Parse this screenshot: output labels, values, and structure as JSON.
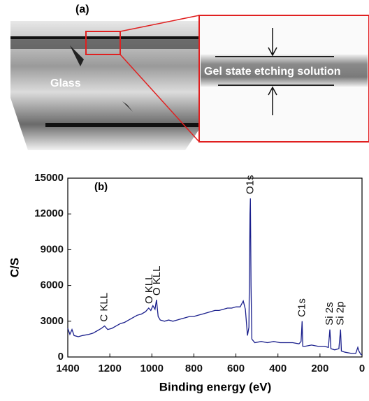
{
  "panel_a": {
    "label": "(a)",
    "glass_label": "Glass",
    "layer_label": "Gel state etching solution"
  },
  "chart_data": {
    "type": "line",
    "panel_label": "(b)",
    "x_label": "Binding energy (eV)",
    "y_label": "C/S",
    "color": "#1a1f8c",
    "xlim": [
      1400,
      0
    ],
    "xticks": [
      1400,
      1200,
      1000,
      800,
      600,
      400,
      200,
      0
    ],
    "ylim": [
      0,
      15000
    ],
    "yticks": [
      0,
      3000,
      6000,
      9000,
      12000,
      15000
    ],
    "x": [
      1400,
      1390,
      1380,
      1370,
      1350,
      1330,
      1300,
      1280,
      1260,
      1240,
      1225,
      1210,
      1190,
      1170,
      1150,
      1130,
      1110,
      1090,
      1070,
      1050,
      1030,
      1015,
      1005,
      995,
      985,
      978,
      970,
      960,
      940,
      920,
      900,
      880,
      860,
      840,
      820,
      800,
      780,
      760,
      740,
      720,
      700,
      680,
      660,
      640,
      620,
      600,
      580,
      565,
      555,
      545,
      538,
      533,
      531,
      528,
      524,
      510,
      480,
      450,
      420,
      390,
      360,
      330,
      300,
      290,
      285,
      282,
      270,
      240,
      210,
      180,
      160,
      153,
      148,
      130,
      110,
      102,
      98,
      80,
      50,
      30,
      20,
      15,
      5,
      0
    ],
    "values": [
      2400,
      1900,
      2300,
      1800,
      1700,
      1800,
      1900,
      2000,
      2200,
      2400,
      2600,
      2300,
      2400,
      2600,
      2800,
      2900,
      3100,
      3300,
      3500,
      3600,
      3800,
      4100,
      3900,
      4300,
      4000,
      4800,
      3400,
      3100,
      3000,
      3100,
      3000,
      3100,
      3200,
      3300,
      3400,
      3400,
      3500,
      3600,
      3700,
      3800,
      3900,
      3900,
      4000,
      4100,
      4100,
      4200,
      4200,
      4700,
      4000,
      1800,
      2500,
      12000,
      13300,
      6000,
      1500,
      1200,
      1300,
      1200,
      1300,
      1200,
      1200,
      1200,
      1100,
      1300,
      3000,
      900,
      900,
      1000,
      900,
      900,
      800,
      2300,
      700,
      600,
      700,
      2300,
      500,
      400,
      300,
      300,
      800,
      500,
      200,
      200
    ],
    "annotations": [
      {
        "text": "C KLL",
        "x": 1225
      },
      {
        "text": "O KLL",
        "x": 1010
      },
      {
        "text": "O KLL",
        "x": 975
      },
      {
        "text": "O1s",
        "x": 531
      },
      {
        "text": "C1s",
        "x": 285
      },
      {
        "text": "Si 2s",
        "x": 153
      },
      {
        "text": "Si 2p",
        "x": 102
      }
    ]
  }
}
